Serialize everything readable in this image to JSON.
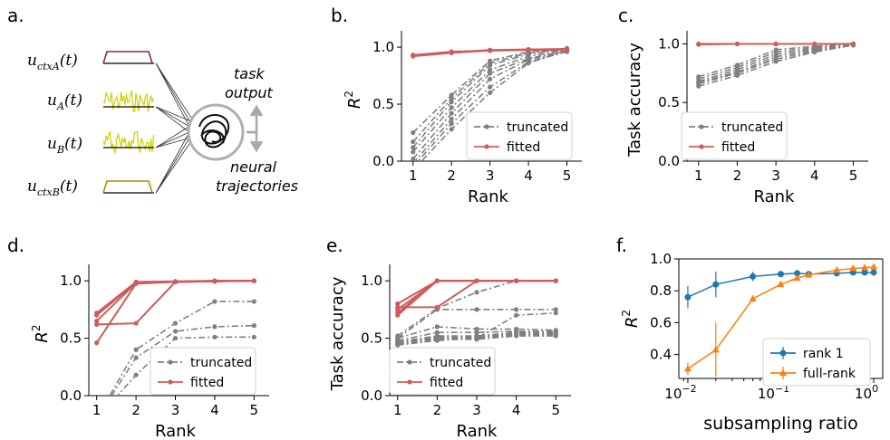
{
  "colors": {
    "truncated": "#808080",
    "fitted": "#cd5c5c",
    "rank1": "#1f77b4",
    "fullrank": "#ff7f0e",
    "ctx": "#8b2252",
    "input": "#c9d400",
    "ctxB": "#b8860b",
    "network": "#b0b0b0"
  },
  "panel_a": {
    "letter": "a.",
    "inputs": [
      {
        "base": "u",
        "sub": "ctxA",
        "arg": "(t)"
      },
      {
        "base": "u",
        "sub": "A",
        "arg": "(t)"
      },
      {
        "base": "u",
        "sub": "B",
        "arg": "(t)"
      },
      {
        "base": "u",
        "sub": "ctxB",
        "arg": "(t)"
      }
    ],
    "output_1": "task",
    "output_2": "output",
    "traj_1": "neural",
    "traj_2": "trajectories"
  },
  "chart_data": [
    {
      "id": "b",
      "letter": "b.",
      "type": "line",
      "xlabel": "Rank",
      "ylabel": "R2",
      "ylabel_base": "R",
      "ylabel_sup": "2",
      "xlim": [
        0.7,
        5.2
      ],
      "ylim": [
        0,
        1.08
      ],
      "xticks": [
        "1",
        "2",
        "3",
        "4",
        "5"
      ],
      "yticks": [
        "0.0",
        "0.5",
        "1.0"
      ],
      "legend": {
        "placement": "lower-right",
        "entries": [
          "truncated",
          "fitted"
        ]
      },
      "x": [
        1,
        2,
        3,
        4,
        5
      ],
      "truncated_series": [
        [
          0.25,
          0.58,
          0.88,
          0.96,
          0.99
        ],
        [
          0.17,
          0.55,
          0.86,
          0.95,
          0.98
        ],
        [
          0.12,
          0.52,
          0.84,
          0.94,
          0.98
        ],
        [
          0.08,
          0.47,
          0.8,
          0.92,
          0.97
        ],
        [
          0.02,
          0.42,
          0.77,
          0.9,
          0.97
        ],
        [
          -0.02,
          0.37,
          0.72,
          0.89,
          0.96
        ],
        [
          -0.05,
          0.33,
          0.65,
          0.87,
          0.96
        ],
        [
          -0.08,
          0.28,
          0.6,
          0.86,
          0.97
        ]
      ],
      "fitted_series": [
        [
          0.93,
          0.955,
          0.975,
          0.98,
          0.985
        ],
        [
          0.92,
          0.95,
          0.97,
          0.975,
          0.98
        ],
        [
          0.93,
          0.96,
          0.97,
          0.98,
          0.98
        ]
      ]
    },
    {
      "id": "c",
      "letter": "c.",
      "type": "line",
      "xlabel": "Rank",
      "ylabel": "Task accuracy",
      "xlim": [
        0.7,
        5.2
      ],
      "ylim": [
        0,
        1.05
      ],
      "xticks": [
        "1",
        "2",
        "3",
        "4",
        "5"
      ],
      "yticks": [
        "0.0",
        "0.5",
        "1.0"
      ],
      "legend": {
        "placement": "lower-right",
        "entries": [
          "truncated",
          "fitted"
        ]
      },
      "x": [
        1,
        2,
        3,
        4,
        5
      ],
      "truncated_series": [
        [
          0.72,
          0.82,
          0.95,
          0.98,
          1.0
        ],
        [
          0.7,
          0.8,
          0.93,
          0.97,
          1.0
        ],
        [
          0.68,
          0.78,
          0.91,
          0.96,
          1.0
        ],
        [
          0.67,
          0.76,
          0.89,
          0.95,
          0.99
        ],
        [
          0.66,
          0.75,
          0.87,
          0.94,
          0.99
        ],
        [
          0.64,
          0.73,
          0.85,
          0.93,
          0.99
        ]
      ],
      "fitted_series": [
        [
          1.0,
          1.0,
          1.0,
          1.0,
          1.0
        ],
        [
          0.995,
          1.0,
          1.0,
          1.0,
          1.0
        ]
      ]
    },
    {
      "id": "d",
      "letter": "d.",
      "type": "line",
      "xlabel": "Rank",
      "ylabel": "R2",
      "ylabel_base": "R",
      "ylabel_sup": "2",
      "xlim": [
        0.8,
        5.2
      ],
      "ylim": [
        0,
        1.08
      ],
      "xticks": [
        "1",
        "2",
        "3",
        "4",
        "5"
      ],
      "yticks": [
        "0.0",
        "0.5",
        "1.0"
      ],
      "legend": {
        "placement": "lower-right",
        "entries": [
          "truncated",
          "fitted"
        ]
      },
      "x": [
        1,
        2,
        3,
        4,
        5
      ],
      "truncated_series": [
        [
          -0.2,
          0.4,
          0.63,
          0.82,
          0.82
        ],
        [
          -0.2,
          0.33,
          0.56,
          0.6,
          0.61
        ],
        [
          -0.2,
          0.18,
          0.5,
          0.51,
          0.51
        ]
      ],
      "fitted_series": [
        [
          0.72,
          0.99,
          0.995,
          1.0,
          1.0
        ],
        [
          0.7,
          0.985,
          0.99,
          0.995,
          1.0
        ],
        [
          0.65,
          0.98,
          0.99,
          0.995,
          1.0
        ],
        [
          0.62,
          0.63,
          0.99,
          1.0,
          1.0
        ],
        [
          0.46,
          0.975,
          0.99,
          0.995,
          1.0
        ]
      ]
    },
    {
      "id": "e",
      "letter": "e.",
      "type": "line",
      "xlabel": "Rank",
      "ylabel": "Task accuracy",
      "xlim": [
        0.8,
        5.2
      ],
      "ylim": [
        0,
        1.08
      ],
      "xticks": [
        "1",
        "2",
        "3",
        "4",
        "5"
      ],
      "yticks": [
        "0.0",
        "0.5",
        "1.0"
      ],
      "legend": {
        "placement": "lower-right",
        "entries": [
          "truncated",
          "fitted"
        ]
      },
      "x": [
        1,
        2,
        3,
        4,
        5
      ],
      "truncated_series": [
        [
          0.52,
          0.76,
          0.9,
          1.0,
          1.0
        ],
        [
          0.5,
          0.75,
          0.75,
          0.75,
          0.75
        ],
        [
          0.5,
          0.6,
          0.58,
          0.58,
          0.57
        ],
        [
          0.48,
          0.55,
          0.55,
          0.56,
          0.56
        ],
        [
          0.47,
          0.52,
          0.52,
          0.55,
          0.55
        ],
        [
          0.46,
          0.51,
          0.51,
          0.54,
          0.54
        ],
        [
          0.45,
          0.5,
          0.5,
          0.53,
          0.53
        ],
        [
          0.45,
          0.49,
          0.49,
          0.52,
          0.52
        ],
        [
          0.44,
          0.48,
          0.5,
          0.7,
          0.72
        ]
      ],
      "fitted_series": [
        [
          0.8,
          1.0,
          1.0,
          1.0,
          1.0
        ],
        [
          0.77,
          0.77,
          1.0,
          1.0,
          1.0
        ],
        [
          0.75,
          1.0,
          1.0,
          1.0,
          1.0
        ],
        [
          0.72,
          1.0,
          1.0,
          1.0,
          1.0
        ],
        [
          0.7,
          1.0,
          1.0,
          1.0,
          1.0
        ]
      ]
    },
    {
      "id": "f",
      "letter": "f.",
      "type": "line",
      "xlabel": "subsampling ratio",
      "ylabel": "R2",
      "ylabel_base": "R",
      "ylabel_sup": "2",
      "xscale": "log",
      "xlim": [
        0.008,
        1.25
      ],
      "ylim": [
        0.25,
        1.0
      ],
      "xticks_base": "10",
      "xticks_exp": [
        "−2",
        "−1",
        "0"
      ],
      "xtick_values": [
        0.01,
        0.1,
        1
      ],
      "yticks": [
        "0.4",
        "0.6",
        "0.8",
        "1.0"
      ],
      "ytick_values": [
        0.4,
        0.6,
        0.8,
        1.0
      ],
      "legend": {
        "placement": "lower-right",
        "entries": [
          "rank 1",
          "full-rank"
        ]
      },
      "series": [
        {
          "name": "rank 1",
          "marker": "circle",
          "x": [
            0.01,
            0.02,
            0.05,
            0.1,
            0.15,
            0.2,
            0.4,
            0.6,
            0.8,
            1.0
          ],
          "y": [
            0.76,
            0.84,
            0.89,
            0.905,
            0.91,
            0.905,
            0.91,
            0.915,
            0.915,
            0.915
          ],
          "err": [
            0.07,
            0.08,
            0.03,
            0.01,
            0.008,
            0.008,
            0.005,
            0.005,
            0.005,
            0.005
          ]
        },
        {
          "name": "full-rank",
          "marker": "triangle",
          "x": [
            0.01,
            0.02,
            0.05,
            0.1,
            0.15,
            0.2,
            0.4,
            0.6,
            0.8,
            1.0
          ],
          "y": [
            0.31,
            0.43,
            0.75,
            0.84,
            0.88,
            0.9,
            0.93,
            0.94,
            0.945,
            0.95
          ],
          "err": [
            0.04,
            0.17,
            0.02,
            0.015,
            0.01,
            0.01,
            0.008,
            0.006,
            0.005,
            0.005
          ]
        }
      ]
    }
  ]
}
